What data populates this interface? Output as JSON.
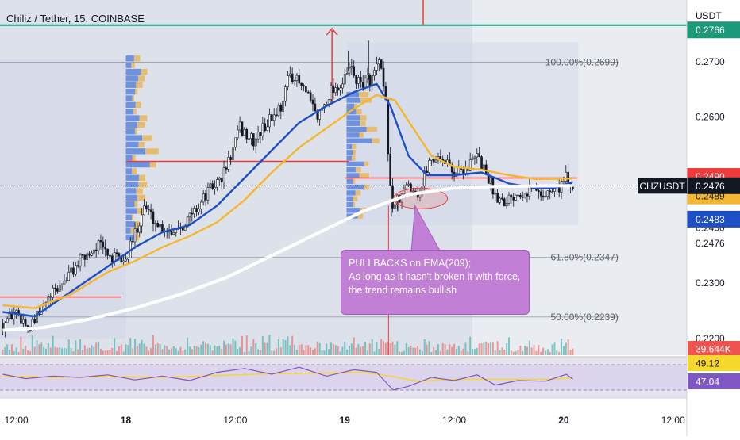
{
  "header": {
    "title": "Chiliz / Tether, 15, COINBASE"
  },
  "colors": {
    "chart_bg": "#dde1ea",
    "chart_bg_right": "#e9ecf1",
    "up": "#26a69a",
    "down": "#ef5350",
    "ema_fast": "#1f4fc4",
    "ema_slow": "#f5b731",
    "ema_209": "#ffffff",
    "rsi": "#7e57c2",
    "rsi_ma": "#f5d82b",
    "callout": "#c17fd6",
    "teal_line": "#1b9a7a"
  },
  "annotation": {
    "lines": [
      "PULLBACKS on EMA(209);",
      "As long as it hasn't broken it with force,",
      "the trend remains bullish"
    ]
  },
  "fib_levels": [
    {
      "label": "100.00%(0.2699)",
      "value": 0.2699
    },
    {
      "label": "61.80%(0.2347)",
      "value": 0.2347
    },
    {
      "label": "50.00%(0.2239)",
      "value": 0.2239
    }
  ],
  "price_badges": [
    {
      "value": 0.2766,
      "text": "0.2766",
      "bg": "#1b9a7a",
      "color": "#ffffff"
    },
    {
      "value": 0.249,
      "text": "0.2490",
      "bg": "#ef3b3b",
      "color": "#ffffff"
    },
    {
      "value": 0.2489,
      "text": "0.2489",
      "bg": "#f5b731",
      "color": "#131722"
    },
    {
      "value": 0.2483,
      "text": "0.2483",
      "bg": "#1f4fc4",
      "color": "#ffffff"
    },
    {
      "value": 0.2476,
      "text": "0.2476",
      "bg": "#ffffff",
      "color": "#131722"
    },
    {
      "value": 0.2476,
      "text": "0.2476",
      "bg": "#131722",
      "color": "#ffffff"
    }
  ],
  "symbol_label": "CHZUSDT",
  "volume_badge": "39.644K",
  "rsi_badges": [
    {
      "text": "49.12",
      "value": 49.12,
      "bg": "#f5d82b",
      "color": "#131722"
    },
    {
      "text": "47.04",
      "value": 47.04,
      "bg": "#7e57c2",
      "color": "#ffffff"
    }
  ],
  "chart_data": {
    "type": "candlestick",
    "title": "Chiliz / Tether, 15, COINBASE",
    "y_axis": {
      "unit_label": "USDT",
      "ticks": [
        "0.2700",
        "0.2600",
        "0.2500",
        "0.2400",
        "0.2300",
        "0.2200"
      ],
      "tick_values": [
        0.27,
        0.26,
        0.25,
        0.24,
        0.23,
        0.22
      ],
      "ylim": [
        0.217,
        0.28
      ]
    },
    "x_axis": {
      "ticks": [
        "12:00",
        "18",
        "12:00",
        "19",
        "12:00",
        "20",
        "12:00"
      ],
      "tick_positions_hours": [
        12,
        24,
        36,
        48,
        60,
        72,
        84
      ],
      "xlim_hours": [
        10.2,
        85.5
      ]
    },
    "price_path": [
      [
        10.5,
        0.2228
      ],
      [
        12.0,
        0.225
      ],
      [
        13.5,
        0.2215
      ],
      [
        15.0,
        0.226
      ],
      [
        17.0,
        0.23
      ],
      [
        19.0,
        0.234
      ],
      [
        21.0,
        0.237
      ],
      [
        22.5,
        0.2345
      ],
      [
        24.0,
        0.234
      ],
      [
        25.0,
        0.239
      ],
      [
        26.0,
        0.244
      ],
      [
        27.5,
        0.2405
      ],
      [
        29.0,
        0.2395
      ],
      [
        30.5,
        0.241
      ],
      [
        32.0,
        0.244
      ],
      [
        33.0,
        0.2465
      ],
      [
        34.5,
        0.249
      ],
      [
        35.5,
        0.253
      ],
      [
        36.5,
        0.258
      ],
      [
        38.0,
        0.2555
      ],
      [
        39.5,
        0.259
      ],
      [
        41.0,
        0.262
      ],
      [
        42.0,
        0.268
      ],
      [
        43.5,
        0.265
      ],
      [
        45.0,
        0.26
      ],
      [
        46.5,
        0.265
      ],
      [
        47.8,
        0.266
      ],
      [
        48.6,
        0.269
      ],
      [
        49.5,
        0.266
      ],
      [
        51.0,
        0.267
      ],
      [
        51.8,
        0.27
      ],
      [
        52.5,
        0.262
      ],
      [
        53.1,
        0.244
      ],
      [
        54.0,
        0.245
      ],
      [
        55.0,
        0.248
      ],
      [
        56.2,
        0.246
      ],
      [
        57.2,
        0.252
      ],
      [
        58.5,
        0.253
      ],
      [
        60.0,
        0.25
      ],
      [
        61.5,
        0.251
      ],
      [
        62.5,
        0.253
      ],
      [
        63.5,
        0.25
      ],
      [
        64.5,
        0.246
      ],
      [
        65.5,
        0.245
      ],
      [
        67.0,
        0.2465
      ],
      [
        68.5,
        0.247
      ],
      [
        70.0,
        0.246
      ],
      [
        71.5,
        0.2475
      ],
      [
        72.3,
        0.249
      ],
      [
        73.0,
        0.247
      ]
    ],
    "spikes": [
      {
        "x": 53.1,
        "low": 0.242
      },
      {
        "x": 48.4,
        "high": 0.272
      },
      {
        "x": 50.6,
        "high": 0.2738
      },
      {
        "x": 53.8,
        "low": 0.243
      }
    ],
    "series": [
      {
        "name": "EMA fast",
        "points": [
          [
            10.5,
            0.2248
          ],
          [
            14.0,
            0.224
          ],
          [
            18.0,
            0.2285
          ],
          [
            22.0,
            0.233
          ],
          [
            25.0,
            0.2365
          ],
          [
            28.0,
            0.2392
          ],
          [
            31.0,
            0.2405
          ],
          [
            34.0,
            0.244
          ],
          [
            37.0,
            0.249
          ],
          [
            40.0,
            0.254
          ],
          [
            43.0,
            0.259
          ],
          [
            46.0,
            0.262
          ],
          [
            49.0,
            0.2645
          ],
          [
            51.5,
            0.266
          ],
          [
            53.0,
            0.262
          ],
          [
            55.0,
            0.253
          ],
          [
            57.0,
            0.2495
          ],
          [
            60.0,
            0.2495
          ],
          [
            63.0,
            0.25
          ],
          [
            66.0,
            0.248
          ],
          [
            69.0,
            0.2472
          ],
          [
            71.0,
            0.2472
          ],
          [
            73.0,
            0.2483
          ]
        ]
      },
      {
        "name": "EMA slow",
        "points": [
          [
            10.5,
            0.226
          ],
          [
            14.0,
            0.2255
          ],
          [
            18.0,
            0.228
          ],
          [
            22.0,
            0.232
          ],
          [
            25.0,
            0.234
          ],
          [
            28.0,
            0.2365
          ],
          [
            31.0,
            0.2385
          ],
          [
            34.0,
            0.241
          ],
          [
            37.0,
            0.245
          ],
          [
            40.0,
            0.25
          ],
          [
            43.0,
            0.2545
          ],
          [
            46.0,
            0.258
          ],
          [
            49.0,
            0.2615
          ],
          [
            51.5,
            0.264
          ],
          [
            53.5,
            0.263
          ],
          [
            55.5,
            0.258
          ],
          [
            57.5,
            0.253
          ],
          [
            60.0,
            0.251
          ],
          [
            63.0,
            0.2505
          ],
          [
            66.0,
            0.2495
          ],
          [
            69.0,
            0.2488
          ],
          [
            73.0,
            0.2489
          ]
        ]
      },
      {
        "name": "EMA(209)",
        "points": [
          [
            10.5,
            0.2215
          ],
          [
            15.0,
            0.222
          ],
          [
            20.0,
            0.2235
          ],
          [
            25.0,
            0.2255
          ],
          [
            30.0,
            0.228
          ],
          [
            35.0,
            0.231
          ],
          [
            40.0,
            0.235
          ],
          [
            45.0,
            0.239
          ],
          [
            50.0,
            0.243
          ],
          [
            55.0,
            0.246
          ],
          [
            60.0,
            0.2472
          ],
          [
            65.0,
            0.2475
          ],
          [
            73.0,
            0.2476
          ]
        ]
      }
    ],
    "red_levels": [
      {
        "value": 0.2275,
        "x0": 10.2,
        "x1": 23.5
      },
      {
        "value": 0.252,
        "x0": 24.0,
        "x1": 48.5
      },
      {
        "value": 0.249,
        "x0": 48.0,
        "x1": 73.5
      }
    ],
    "rsi": {
      "ylim": [
        20,
        80
      ],
      "band": [
        30,
        70
      ],
      "rsi_points": [
        [
          10.5,
          55
        ],
        [
          13.0,
          48
        ],
        [
          16.0,
          52
        ],
        [
          19.0,
          50
        ],
        [
          22.0,
          54
        ],
        [
          25.0,
          46
        ],
        [
          28.0,
          52
        ],
        [
          31.0,
          45
        ],
        [
          34.0,
          58
        ],
        [
          37.0,
          64
        ],
        [
          40.0,
          55
        ],
        [
          43.0,
          66
        ],
        [
          46.0,
          52
        ],
        [
          49.0,
          62
        ],
        [
          51.5,
          58
        ],
        [
          53.3,
          30
        ],
        [
          55.0,
          36
        ],
        [
          57.5,
          50
        ],
        [
          60.0,
          45
        ],
        [
          62.5,
          54
        ],
        [
          64.5,
          38
        ],
        [
          67.0,
          45
        ],
        [
          70.0,
          44
        ],
        [
          72.3,
          55
        ],
        [
          73.0,
          47
        ]
      ],
      "ma_points": [
        [
          10.5,
          52
        ],
        [
          16.0,
          50
        ],
        [
          22.0,
          51
        ],
        [
          28.0,
          50
        ],
        [
          34.0,
          53
        ],
        [
          40.0,
          56
        ],
        [
          46.0,
          57
        ],
        [
          50.0,
          58
        ],
        [
          53.0,
          52
        ],
        [
          56.0,
          44
        ],
        [
          60.0,
          47
        ],
        [
          65.0,
          47
        ],
        [
          70.0,
          47
        ],
        [
          73.0,
          49
        ]
      ]
    }
  }
}
